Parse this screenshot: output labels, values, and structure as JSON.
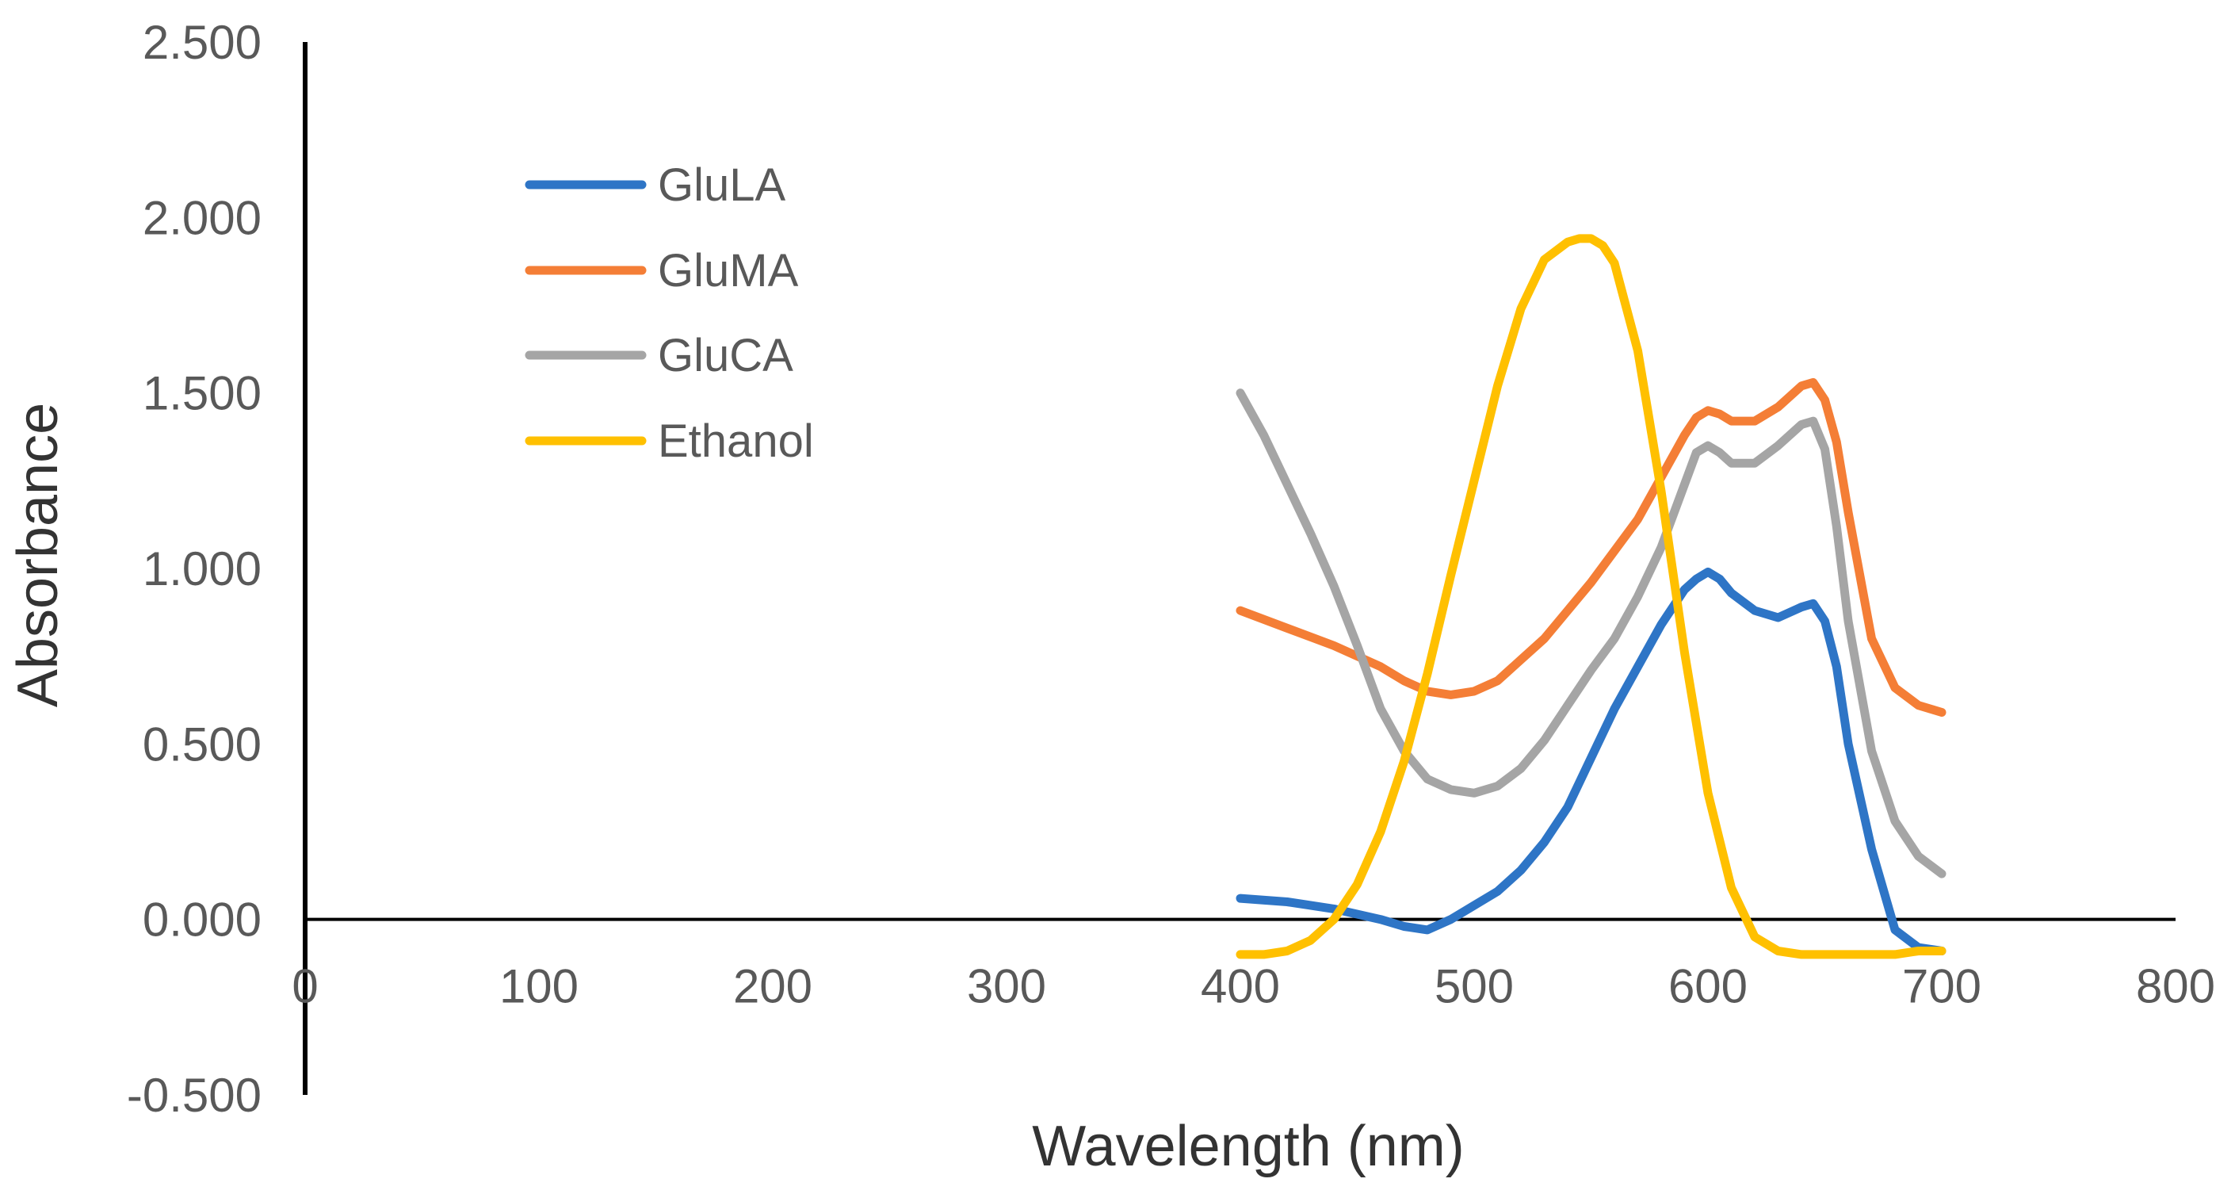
{
  "chart_data": {
    "type": "line",
    "title": "",
    "xlabel": "Wavelength (nm)",
    "ylabel": "Absorbance",
    "xlim": [
      0,
      800
    ],
    "ylim": [
      -0.5,
      2.5
    ],
    "xticks": [
      0,
      100,
      200,
      300,
      400,
      500,
      600,
      700,
      800
    ],
    "xtick_labels": [
      "0",
      "100",
      "200",
      "300",
      "400",
      "500",
      "600",
      "700",
      "800"
    ],
    "yticks": [
      2.5,
      2.0,
      1.5,
      1.0,
      0.5,
      0.0,
      -0.5
    ],
    "ytick_labels": [
      "2.500",
      "2.000",
      "1.500",
      "1.000",
      "0.500",
      "0.000",
      "-0.500"
    ],
    "grid": false,
    "legend_position": "top-left",
    "series": [
      {
        "name": "GluLA",
        "color": "#2E75C6",
        "x": [
          400,
          420,
          440,
          460,
          470,
          480,
          490,
          500,
          510,
          520,
          530,
          540,
          550,
          560,
          570,
          580,
          590,
          595,
          600,
          605,
          610,
          620,
          630,
          640,
          645,
          650,
          655,
          660,
          670,
          680,
          690,
          700
        ],
        "y": [
          0.06,
          0.05,
          0.03,
          0.0,
          -0.02,
          -0.03,
          0.0,
          0.04,
          0.08,
          0.14,
          0.22,
          0.32,
          0.46,
          0.6,
          0.72,
          0.84,
          0.94,
          0.97,
          0.99,
          0.97,
          0.93,
          0.88,
          0.86,
          0.89,
          0.9,
          0.85,
          0.72,
          0.5,
          0.2,
          -0.03,
          -0.08,
          -0.09
        ]
      },
      {
        "name": "GluMA",
        "color": "#F47E36",
        "x": [
          400,
          420,
          440,
          460,
          470,
          480,
          490,
          500,
          510,
          520,
          530,
          540,
          550,
          560,
          570,
          580,
          590,
          595,
          600,
          605,
          610,
          620,
          630,
          640,
          645,
          650,
          655,
          660,
          670,
          680,
          690,
          700
        ],
        "y": [
          0.88,
          0.83,
          0.78,
          0.72,
          0.68,
          0.65,
          0.64,
          0.65,
          0.68,
          0.74,
          0.8,
          0.88,
          0.96,
          1.05,
          1.14,
          1.26,
          1.38,
          1.43,
          1.45,
          1.44,
          1.42,
          1.42,
          1.46,
          1.52,
          1.53,
          1.48,
          1.36,
          1.16,
          0.8,
          0.66,
          0.61,
          0.59
        ]
      },
      {
        "name": "GluCA",
        "color": "#A5A5A5",
        "x": [
          400,
          410,
          420,
          430,
          440,
          450,
          460,
          470,
          480,
          490,
          500,
          510,
          520,
          530,
          540,
          550,
          560,
          570,
          580,
          590,
          595,
          600,
          605,
          610,
          620,
          630,
          640,
          645,
          650,
          655,
          660,
          670,
          680,
          690,
          700
        ],
        "y": [
          1.5,
          1.38,
          1.24,
          1.1,
          0.95,
          0.78,
          0.6,
          0.48,
          0.4,
          0.37,
          0.36,
          0.38,
          0.43,
          0.51,
          0.61,
          0.71,
          0.8,
          0.92,
          1.06,
          1.24,
          1.33,
          1.35,
          1.33,
          1.3,
          1.3,
          1.35,
          1.41,
          1.42,
          1.34,
          1.12,
          0.85,
          0.48,
          0.28,
          0.18,
          0.13
        ]
      },
      {
        "name": "Ethanol",
        "color": "#FFC000",
        "x": [
          400,
          410,
          420,
          430,
          440,
          450,
          460,
          470,
          480,
          490,
          500,
          510,
          520,
          530,
          540,
          545,
          550,
          555,
          560,
          570,
          580,
          590,
          600,
          610,
          620,
          630,
          640,
          650,
          660,
          670,
          680,
          690,
          700
        ],
        "y": [
          -0.1,
          -0.1,
          -0.09,
          -0.06,
          0.0,
          0.1,
          0.25,
          0.45,
          0.7,
          0.98,
          1.25,
          1.52,
          1.74,
          1.88,
          1.93,
          1.94,
          1.94,
          1.92,
          1.87,
          1.62,
          1.22,
          0.76,
          0.36,
          0.09,
          -0.05,
          -0.09,
          -0.1,
          -0.1,
          -0.1,
          -0.1,
          -0.1,
          -0.09,
          -0.09
        ]
      }
    ]
  }
}
